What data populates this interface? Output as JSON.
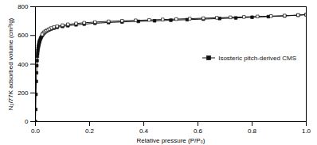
{
  "chart_data": {
    "type": "line",
    "xlabel": "Relative pressure (P/P₀)",
    "ylabel": "N₂/77K adsorbed volume (cm³/g)",
    "xlim": [
      0.0,
      1.0
    ],
    "ylim": [
      0,
      800
    ],
    "xticks": [
      {
        "value": 0.0,
        "label": "0.0"
      },
      0.2,
      0.4,
      0.6,
      0.8,
      {
        "value": 1.0,
        "label": "1.0"
      }
    ],
    "yticks": [
      0,
      200,
      400,
      600,
      800
    ],
    "legend": "right",
    "series": [
      {
        "name": "Isosteric pitch-derived CMS",
        "color": "#111111",
        "marker": "square",
        "line_style": "solid",
        "x": [
          0.0,
          0.001,
          0.002,
          0.003,
          0.004,
          0.005,
          0.006,
          0.007,
          0.008,
          0.009,
          0.01,
          0.011,
          0.012,
          0.013,
          0.014,
          0.015,
          0.016,
          0.018,
          0.02,
          0.022,
          0.025,
          0.028,
          0.032,
          0.037,
          0.043,
          0.05,
          0.058,
          0.068,
          0.08,
          0.1,
          0.12,
          0.15,
          0.18,
          0.22,
          0.27,
          0.32,
          0.38,
          0.44,
          0.5,
          0.56,
          0.62,
          0.68,
          0.74,
          0.8,
          0.86,
          0.92,
          0.97,
          1.0
        ],
        "values": [
          0,
          85,
          190,
          280,
          340,
          390,
          425,
          455,
          475,
          495,
          510,
          522,
          533,
          542,
          550,
          558,
          564,
          574,
          583,
          590,
          600,
          608,
          617,
          625,
          632,
          639,
          645,
          651,
          657,
          663,
          668,
          674,
          679,
          685,
          690,
          694,
          698,
          702,
          706,
          710,
          714,
          718,
          722,
          727,
          731,
          736,
          741,
          745
        ]
      },
      {
        "color": "#111111",
        "marker": "open_square",
        "line_style": "solid",
        "x": [
          1.0,
          0.97,
          0.92,
          0.87,
          0.82,
          0.77,
          0.72,
          0.67,
          0.62,
          0.57,
          0.52,
          0.47,
          0.42,
          0.37,
          0.32,
          0.27,
          0.22,
          0.18,
          0.15,
          0.12,
          0.1,
          0.08,
          0.068,
          0.058,
          0.05,
          0.043,
          0.037,
          0.032,
          0.028,
          0.025
        ],
        "values": [
          745,
          742,
          738,
          735,
          732,
          729,
          726,
          723,
          720,
          717,
          714,
          711,
          708,
          705,
          702,
          698,
          693,
          688,
          683,
          677,
          671,
          664,
          658,
          651,
          644,
          637,
          630,
          622,
          615,
          607
        ]
      }
    ]
  }
}
